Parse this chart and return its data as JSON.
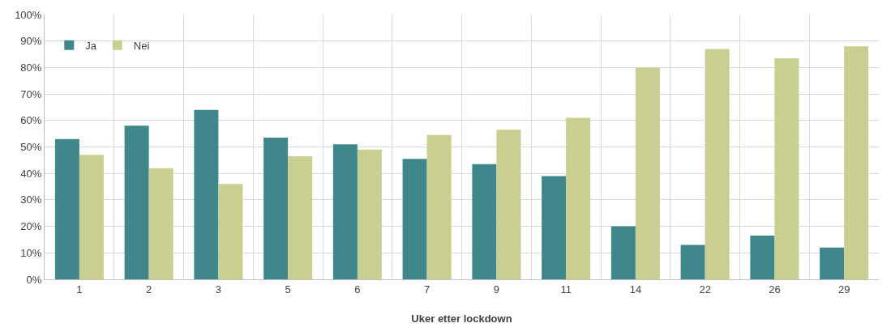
{
  "chart_data": {
    "type": "bar",
    "xlabel": "Uker etter lockdown",
    "categories": [
      "1",
      "2",
      "3",
      "5",
      "6",
      "7",
      "9",
      "11",
      "14",
      "22",
      "26",
      "29"
    ],
    "series": [
      {
        "name": "Ja",
        "color": "#3f878b",
        "values": [
          53,
          58,
          64,
          53.5,
          51,
          45.5,
          43.5,
          39,
          20,
          13,
          16.5,
          12
        ]
      },
      {
        "name": "Nei",
        "color": "#c8cf90",
        "values": [
          47,
          42,
          36,
          46.5,
          49,
          54.5,
          56.5,
          61,
          80,
          87,
          83.5,
          88
        ]
      }
    ],
    "ylim": [
      0,
      100
    ],
    "yticks": [
      {
        "value": 0,
        "label": "0%"
      },
      {
        "value": 10,
        "label": "10%"
      },
      {
        "value": 20,
        "label": "20%"
      },
      {
        "value": 30,
        "label": "30%"
      },
      {
        "value": 40,
        "label": "40%"
      },
      {
        "value": 50,
        "label": "50%"
      },
      {
        "value": 60,
        "label": "60%"
      },
      {
        "value": 70,
        "label": "70%"
      },
      {
        "value": 80,
        "label": "80%"
      },
      {
        "value": 90,
        "label": "90%"
      },
      {
        "value": 100,
        "label": "100%"
      }
    ],
    "grid": true,
    "legend": "top left"
  }
}
